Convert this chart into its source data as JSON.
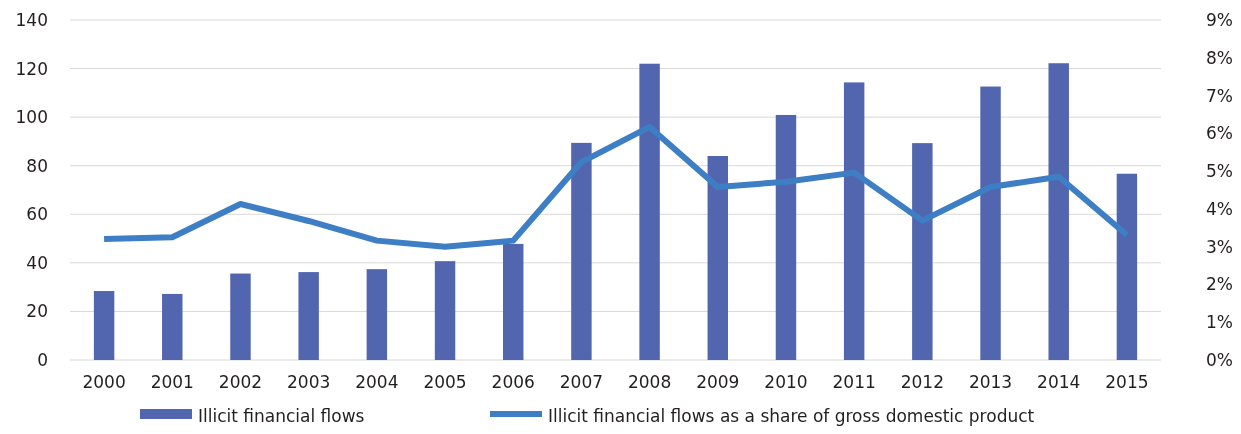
{
  "chart_data": {
    "type": "bar",
    "categories": [
      "2000",
      "2001",
      "2002",
      "2003",
      "2004",
      "2005",
      "2006",
      "2007",
      "2008",
      "2009",
      "2010",
      "2011",
      "2012",
      "2013",
      "2014",
      "2015"
    ],
    "series": [
      {
        "name": "Illicit financial flows",
        "color": "#5266b0",
        "values": [
          28.4,
          27.2,
          35.6,
          36.2,
          37.4,
          40.7,
          47.8,
          89.4,
          122,
          84,
          100.9,
          114.3,
          89.3,
          112.6,
          122.2,
          76.7
        ]
      },
      {
        "name": "Illicit financial flows as a share of gross domestic product",
        "type": "line",
        "axis": "y2",
        "color": "#3d7ec4",
        "values": [
          3.2,
          3.25,
          4.13,
          3.68,
          3.16,
          3.0,
          3.16,
          5.24,
          6.17,
          4.58,
          4.72,
          4.96,
          3.69,
          4.58,
          4.85,
          3.31
        ]
      }
    ],
    "ylim": [
      0,
      140
    ],
    "yticks": [
      0,
      20,
      40,
      60,
      80,
      100,
      120,
      140
    ],
    "y2lim": [
      0,
      9
    ],
    "y2ticks": [
      {
        "value": 0,
        "label": "0%"
      },
      {
        "value": 1,
        "label": "1%"
      },
      {
        "value": 2,
        "label": "2%"
      },
      {
        "value": 3,
        "label": "3%"
      },
      {
        "value": 4,
        "label": "4%"
      },
      {
        "value": 5,
        "label": "5%"
      },
      {
        "value": 6,
        "label": "6%"
      },
      {
        "value": 7,
        "label": "7%"
      },
      {
        "value": 8,
        "label": "8%"
      },
      {
        "value": 9,
        "label": "9%"
      }
    ],
    "grid": "y",
    "legend": "bottom",
    "marker": "none",
    "line_style": "solid"
  }
}
